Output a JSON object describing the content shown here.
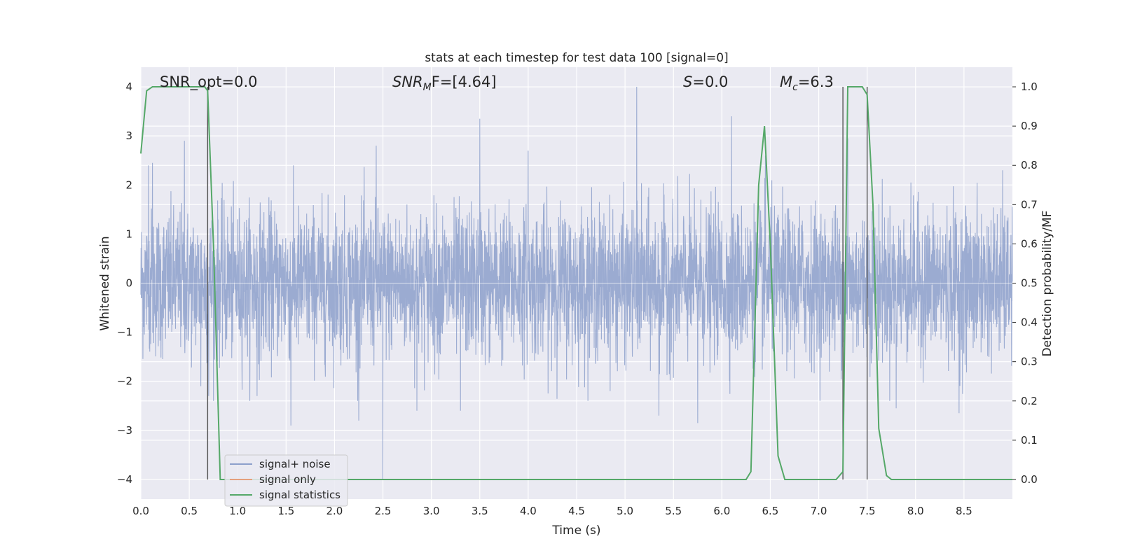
{
  "chart_data": {
    "type": "line",
    "title": "stats at each timestep for test data 100 [signal=0]",
    "xlabel": "Time (s)",
    "ylabel": "Whitened strain",
    "ylabel_right": "Detection probability/MF",
    "xlim": [
      0.0,
      9.0
    ],
    "ylim": [
      -4.4,
      4.4
    ],
    "ylim_right": [
      -0.05,
      1.05
    ],
    "x_ticks": [
      "0.0",
      "0.5",
      "1.0",
      "1.5",
      "2.0",
      "2.5",
      "3.0",
      "3.5",
      "4.0",
      "4.5",
      "5.0",
      "5.5",
      "6.0",
      "6.5",
      "7.0",
      "7.5",
      "8.0",
      "8.5"
    ],
    "y_ticks": [
      "4",
      "3",
      "2",
      "1",
      "0",
      "−1",
      "−2",
      "−3",
      "−4"
    ],
    "y_ticks_right": [
      "1.0",
      "0.9",
      "0.8",
      "0.7",
      "0.6",
      "0.5",
      "0.4",
      "0.3",
      "0.2",
      "0.1",
      "0.0"
    ],
    "grid": true,
    "legend_placement": "lower-left",
    "annotations": {
      "snr_opt": "SNR_opt=0.0",
      "snr_mf_main": "SNR",
      "snr_mf_sub": "M",
      "snr_mf_rest": "F=[4.64]",
      "s_main": "S",
      "s_rest": "=0.0",
      "mc_main": "M",
      "mc_sub": "c",
      "mc_rest": "=6.3"
    },
    "vertical_lines_x": [
      0.69,
      7.25,
      7.5
    ],
    "series": [
      {
        "name": "signal+ noise",
        "color": "#8da0cb",
        "kind": "noise",
        "axis": "left",
        "envelope_std": 0.75,
        "spikes": [
          {
            "x": 0.08,
            "y": 2.4
          },
          {
            "x": 0.12,
            "y": 2.45
          },
          {
            "x": 0.45,
            "y": 2.9
          },
          {
            "x": 0.62,
            "y": -2.1
          },
          {
            "x": 0.7,
            "y": 2.15
          },
          {
            "x": 0.7,
            "y": -2.3
          },
          {
            "x": 1.2,
            "y": -2.3
          },
          {
            "x": 1.55,
            "y": -2.9
          },
          {
            "x": 2.25,
            "y": -2.8
          },
          {
            "x": 2.43,
            "y": 2.8
          },
          {
            "x": 2.5,
            "y": -4.0
          },
          {
            "x": 2.85,
            "y": -2.6
          },
          {
            "x": 3.3,
            "y": -2.6
          },
          {
            "x": 3.5,
            "y": 3.35
          },
          {
            "x": 4.0,
            "y": 2.7
          },
          {
            "x": 5.12,
            "y": 4.0
          },
          {
            "x": 5.35,
            "y": -2.7
          },
          {
            "x": 5.75,
            "y": -2.85
          },
          {
            "x": 6.1,
            "y": 3.4
          },
          {
            "x": 6.45,
            "y": 2.6
          },
          {
            "x": 7.3,
            "y": 2.95
          },
          {
            "x": 7.8,
            "y": -2.55
          },
          {
            "x": 8.45,
            "y": -2.65
          },
          {
            "x": 8.9,
            "y": 2.3
          }
        ]
      },
      {
        "name": "signal only",
        "color": "#e5a07d",
        "kind": "line",
        "axis": "left",
        "x": [],
        "y": []
      },
      {
        "name": "signal statistics",
        "color": "#55a868",
        "kind": "line",
        "axis": "right",
        "x": [
          0.0,
          0.06,
          0.12,
          0.2,
          0.3,
          0.4,
          0.5,
          0.6,
          0.66,
          0.69,
          0.75,
          0.82,
          0.9,
          1.0,
          2.0,
          3.0,
          4.0,
          5.0,
          5.5,
          6.0,
          6.25,
          6.3,
          6.38,
          6.44,
          6.5,
          6.58,
          6.65,
          6.72,
          7.0,
          7.18,
          7.25,
          7.3,
          7.38,
          7.45,
          7.5,
          7.56,
          7.62,
          7.7,
          7.75,
          7.8,
          7.9,
          8.0,
          9.0
        ],
        "y": [
          0.83,
          0.99,
          1.0,
          1.0,
          1.0,
          1.0,
          1.0,
          1.0,
          1.0,
          0.99,
          0.6,
          0.0,
          0.0,
          0.0,
          0.0,
          0.0,
          0.0,
          0.0,
          0.0,
          0.0,
          0.0,
          0.02,
          0.75,
          0.9,
          0.6,
          0.06,
          0.0,
          0.0,
          0.0,
          0.0,
          0.02,
          1.0,
          1.0,
          1.0,
          0.98,
          0.7,
          0.13,
          0.01,
          0.0,
          0.0,
          0.0,
          0.0,
          0.0
        ]
      }
    ]
  }
}
